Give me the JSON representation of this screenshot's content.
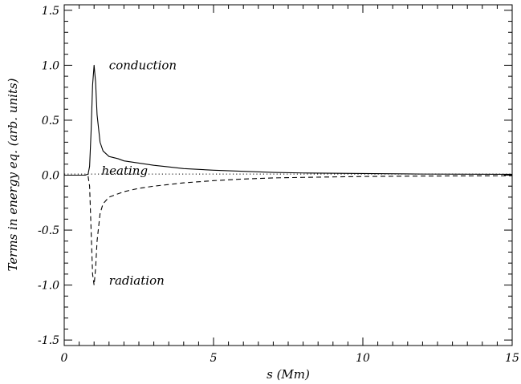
{
  "chart_data": {
    "type": "line",
    "title": "",
    "xlabel": "s (Mm)",
    "ylabel": "Terms in energy eq. (arb. units)",
    "xlim": [
      0,
      15
    ],
    "ylim": [
      -1.55,
      1.55
    ],
    "x_ticks": [
      0,
      5,
      10,
      15
    ],
    "x_tick_labels": [
      "0",
      "5",
      "10",
      "15"
    ],
    "y_ticks": [
      -1.5,
      -1.0,
      -0.5,
      0.0,
      0.5,
      1.0,
      1.5
    ],
    "y_tick_labels": [
      "-1.5",
      "-1.0",
      "-0.5",
      "0.0",
      "0.5",
      "1.0",
      "1.5"
    ],
    "grid": false,
    "legend": "none",
    "series": [
      {
        "name": "conduction",
        "line_style": "solid",
        "color": "#000000",
        "x": [
          0,
          0.7,
          0.8,
          0.85,
          0.9,
          0.95,
          1.0,
          1.05,
          1.1,
          1.2,
          1.3,
          1.5,
          1.8,
          2.0,
          2.5,
          3.0,
          3.5,
          4.0,
          5.0,
          6.0,
          7.0,
          8.0,
          10.0,
          12.0,
          15.0
        ],
        "y": [
          0,
          0,
          0.01,
          0.08,
          0.4,
          0.82,
          1.0,
          0.85,
          0.55,
          0.3,
          0.22,
          0.17,
          0.15,
          0.13,
          0.11,
          0.09,
          0.075,
          0.06,
          0.045,
          0.035,
          0.025,
          0.02,
          0.015,
          0.01,
          0.008
        ]
      },
      {
        "name": "radiation",
        "line_style": "dashed",
        "color": "#000000",
        "x": [
          0,
          0.7,
          0.8,
          0.85,
          0.9,
          0.95,
          1.0,
          1.05,
          1.1,
          1.2,
          1.3,
          1.5,
          2.0,
          2.5,
          3.0,
          3.5,
          4.0,
          5.0,
          6.0,
          7.0,
          8.0,
          10.0,
          12.0,
          15.0
        ],
        "y": [
          0,
          0,
          -0.01,
          -0.1,
          -0.5,
          -0.9,
          -1.0,
          -0.85,
          -0.6,
          -0.35,
          -0.26,
          -0.2,
          -0.15,
          -0.12,
          -0.1,
          -0.085,
          -0.07,
          -0.05,
          -0.035,
          -0.025,
          -0.02,
          -0.012,
          -0.008,
          -0.005
        ]
      },
      {
        "name": "heating",
        "line_style": "dotted",
        "color": "#000000",
        "x": [
          0,
          15
        ],
        "y": [
          0.01,
          0.01
        ]
      }
    ],
    "annotations": [
      {
        "text": "conduction",
        "x": 1.5,
        "y": 1.0
      },
      {
        "text": "heating",
        "x": 1.25,
        "y": 0.04
      },
      {
        "text": "radiation",
        "x": 1.5,
        "y": -0.96
      }
    ]
  }
}
